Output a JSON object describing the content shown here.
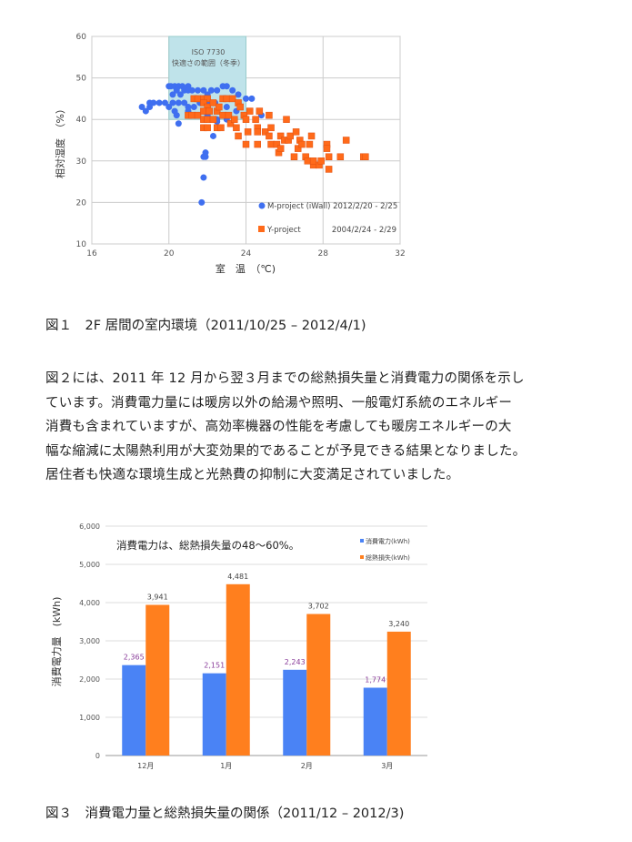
{
  "figure1": {
    "caption": "図１　2F 居間の室内環境（2011/10/25 – 2012/4/1)"
  },
  "paragraph": {
    "lines": [
      "図２には、2011 年 12 月から翌３月までの総熱損失量と消費電力の関係を示し",
      "ています。消費電力量には暖房以外の給湯や照明、一般電灯系統のエネルギー",
      "消費も含まれていますが、高効率機器の性能を考慮しても暖房エネルギーの大",
      "幅な縮減に太陽熱利用が大変効果的であることが予見できる結果となりました。",
      "居住者も快適な環境生成と光熱費の抑制に大変満足されていました。"
    ]
  },
  "figure3": {
    "caption": "図３　消費電力量と総熱損失量の関係（2011/12 – 2012/3)"
  },
  "chart_data": [
    {
      "type": "scatter",
      "xlabel": "室　温　（℃)",
      "ylabel": "相対湿度　（%）",
      "xlim": [
        16,
        32
      ],
      "ylim": [
        10,
        60
      ],
      "xticks": [
        "16",
        "20",
        "24",
        "28",
        "32"
      ],
      "yticks": [
        "10",
        "20",
        "30",
        "40",
        "50",
        "60"
      ],
      "grid": true,
      "annotation": {
        "range_x": [
          20,
          24
        ],
        "line1": "ISO 7730",
        "line2": "快適さの範囲（冬季）",
        "color": "#bfe3ea"
      },
      "series": [
        {
          "name": "M-project (iWall) 2012/2/20 - 2/25",
          "color": "#3f6ff0",
          "marker": "circle",
          "points": [
            [
              18.6,
              43
            ],
            [
              18.8,
              42
            ],
            [
              19,
              43
            ],
            [
              19,
              44
            ],
            [
              19.2,
              44
            ],
            [
              19.5,
              44
            ],
            [
              19.8,
              44
            ],
            [
              20,
              43
            ],
            [
              20,
              48
            ],
            [
              20.1,
              48
            ],
            [
              20.3,
              48
            ],
            [
              20.5,
              48
            ],
            [
              20.7,
              48
            ],
            [
              21,
              48
            ],
            [
              20.2,
              46
            ],
            [
              20.4,
              47
            ],
            [
              20.6,
              46
            ],
            [
              20.8,
              47
            ],
            [
              21,
              47
            ],
            [
              21.2,
              47
            ],
            [
              21.5,
              47
            ],
            [
              21.8,
              47
            ],
            [
              22,
              46
            ],
            [
              22.2,
              47
            ],
            [
              22.5,
              47
            ],
            [
              22.8,
              48
            ],
            [
              23,
              48
            ],
            [
              23.3,
              47
            ],
            [
              23.6,
              46
            ],
            [
              24,
              45
            ],
            [
              24.3,
              45
            ],
            [
              20.2,
              44
            ],
            [
              20.5,
              44
            ],
            [
              20.8,
              44
            ],
            [
              21,
              43
            ],
            [
              21.3,
              43
            ],
            [
              21.6,
              44
            ],
            [
              22,
              44
            ],
            [
              22.4,
              44
            ],
            [
              23,
              43
            ],
            [
              23.5,
              42
            ],
            [
              20.3,
              42
            ],
            [
              20.4,
              41
            ],
            [
              20.5,
              39
            ],
            [
              21,
              42
            ],
            [
              22,
              41
            ],
            [
              22.3,
              36
            ],
            [
              21.9,
              32
            ],
            [
              21.8,
              31
            ],
            [
              21.9,
              31
            ],
            [
              21.8,
              26
            ],
            [
              21.7,
              20
            ],
            [
              22.5,
              40
            ],
            [
              23,
              40
            ],
            [
              24.8,
              41
            ],
            [
              22.5,
              39.5
            ]
          ]
        },
        {
          "name": "Y-project 2004/2/24 - 2/29",
          "label": "Y-project",
          "period": "2004/2/24 - 2/29",
          "color": "#ff6a1a",
          "marker": "square",
          "points": [
            [
              21,
              41
            ],
            [
              21.2,
              41
            ],
            [
              21.5,
              41
            ],
            [
              21.3,
              45
            ],
            [
              21.5,
              45
            ],
            [
              21.8,
              45
            ],
            [
              22,
              45
            ],
            [
              21.8,
              44
            ],
            [
              22,
              43
            ],
            [
              21.8,
              42
            ],
            [
              22.1,
              42
            ],
            [
              22.3,
              44
            ],
            [
              21.8,
              40
            ],
            [
              22,
              40
            ],
            [
              21.8,
              38
            ],
            [
              22,
              38
            ],
            [
              22.3,
              40
            ],
            [
              22.5,
              42
            ],
            [
              22.6,
              43
            ],
            [
              22.8,
              45
            ],
            [
              23,
              45
            ],
            [
              23.3,
              45
            ],
            [
              22.5,
              38
            ],
            [
              22.7,
              38
            ],
            [
              22.8,
              41
            ],
            [
              23.1,
              41
            ],
            [
              23.2,
              39
            ],
            [
              23.4,
              40
            ],
            [
              23.6,
              44
            ],
            [
              23.7,
              43
            ],
            [
              23.5,
              38
            ],
            [
              23.6,
              36
            ],
            [
              23.9,
              41
            ],
            [
              24,
              40
            ],
            [
              24.1,
              37
            ],
            [
              24,
              34
            ],
            [
              24.2,
              42
            ],
            [
              24.5,
              40
            ],
            [
              24.6,
              38
            ],
            [
              24.7,
              42
            ],
            [
              24.6,
              37
            ],
            [
              24.6,
              34
            ],
            [
              25,
              37
            ],
            [
              25.2,
              36
            ],
            [
              25.2,
              41
            ],
            [
              25.3,
              38
            ],
            [
              25.3,
              34
            ],
            [
              25.6,
              34
            ],
            [
              25.7,
              32
            ],
            [
              25.8,
              36
            ],
            [
              25.8,
              33
            ],
            [
              26,
              35
            ],
            [
              26.1,
              40
            ],
            [
              26.2,
              35
            ],
            [
              26.3,
              36
            ],
            [
              26.5,
              31
            ],
            [
              26.6,
              37
            ],
            [
              26.7,
              33
            ],
            [
              26.8,
              35
            ],
            [
              26.9,
              34
            ],
            [
              27.1,
              31
            ],
            [
              27.2,
              30
            ],
            [
              27.3,
              34
            ],
            [
              27.4,
              36
            ],
            [
              27.5,
              29
            ],
            [
              27.5,
              30
            ],
            [
              27.8,
              29
            ],
            [
              27.9,
              30
            ],
            [
              28.2,
              34
            ],
            [
              28.2,
              33
            ],
            [
              28.3,
              31
            ],
            [
              28.3,
              28
            ],
            [
              28.9,
              31
            ],
            [
              29.2,
              35
            ],
            [
              30.1,
              31
            ],
            [
              30.2,
              31
            ]
          ]
        }
      ]
    },
    {
      "type": "bar",
      "title": "消費電力は、総熱損失量の48～60%。",
      "ylabel": "消費電力量　(kWh)",
      "ylim": [
        0,
        6000
      ],
      "yticks": [
        "0",
        "1,000",
        "2,000",
        "3,000",
        "4,000",
        "5,000",
        "6,000"
      ],
      "grid": true,
      "legend": "top-right",
      "categories": [
        "12月",
        "1月",
        "2月",
        "3月"
      ],
      "series": [
        {
          "name": "消費電力(kWh)",
          "color": "#4a83f5",
          "label_color": "#8a3d9a",
          "values": [
            2365,
            2151,
            2243,
            1774
          ],
          "labels": [
            "2,365",
            "2,151",
            "2,243",
            "1,774"
          ]
        },
        {
          "name": "総熱損失(kWh)",
          "color": "#ff7f1e",
          "label_color": "#444",
          "values": [
            3941,
            4481,
            3702,
            3240
          ],
          "labels": [
            "3,941",
            "4,481",
            "3,702",
            "3,240"
          ]
        }
      ]
    }
  ]
}
